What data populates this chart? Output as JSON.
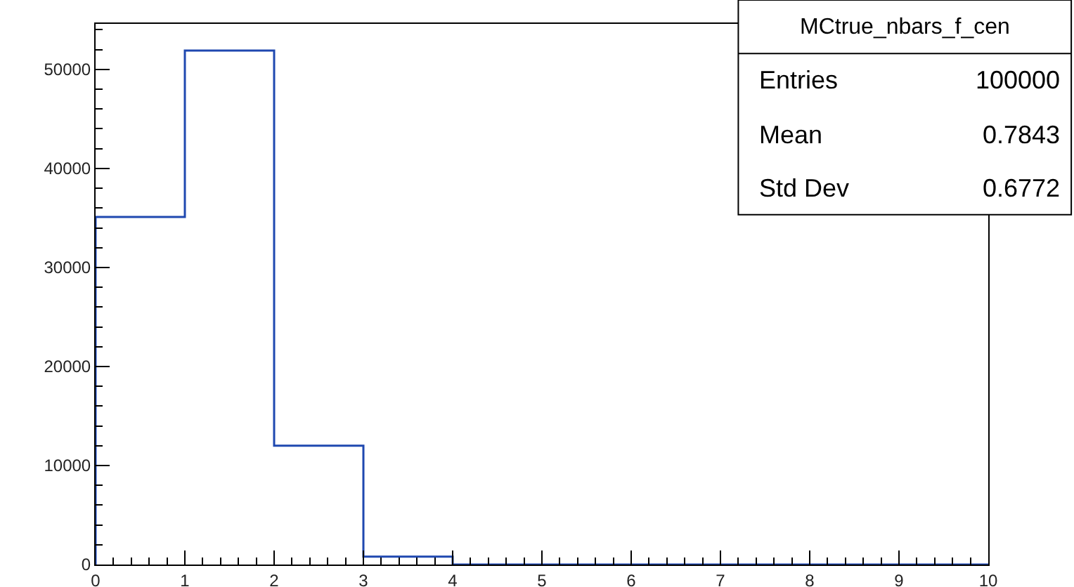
{
  "chart_data": {
    "type": "histogram",
    "bins": [
      0,
      1,
      2,
      3,
      4,
      5,
      6,
      7,
      8,
      9,
      10
    ],
    "values": [
      35100,
      51900,
      12000,
      800,
      0,
      0,
      0,
      0,
      0,
      0
    ],
    "color": "#1f48b0",
    "xlim": [
      0,
      10
    ],
    "xticks": [
      0,
      1,
      2,
      3,
      4,
      5,
      6,
      7,
      8,
      9,
      10
    ],
    "ylim": [
      0,
      54600
    ],
    "yticks": [
      0,
      10000,
      20000,
      30000,
      40000,
      50000
    ],
    "annotations": [
      "MCtrue_nbars_f_cen",
      "Entries",
      "100000",
      "Mean",
      "0.7843",
      "Std Dev",
      "0.6772"
    ]
  }
}
